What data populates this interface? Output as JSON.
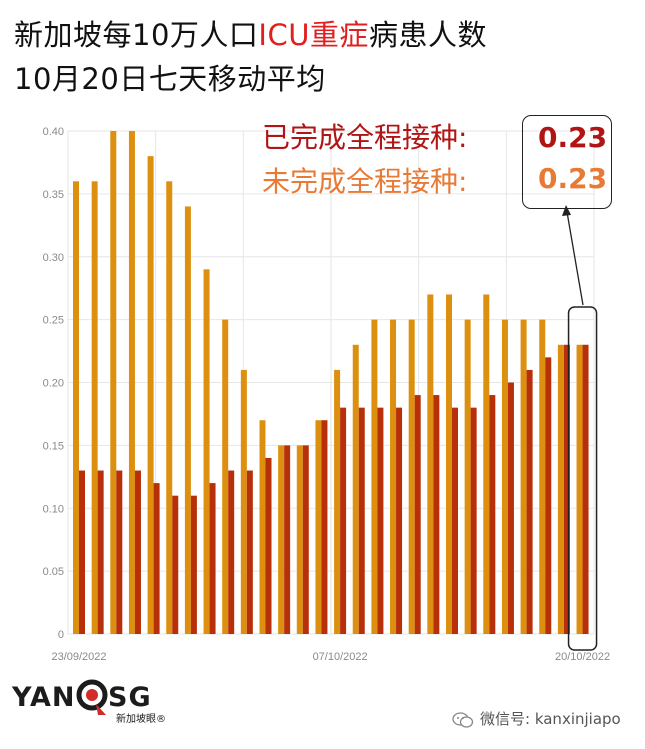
{
  "title": {
    "line1_a": "新加坡每10万人口",
    "line1_b": "ICU重症",
    "line1_c": "病患人数",
    "line2": "10月20日七天移动平均"
  },
  "callout": {
    "vaccinated_label": "已完成全程接种:",
    "vaccinated_value": "0.23",
    "unvaccinated_label": "未完成全程接种:",
    "unvaccinated_value": "0.23"
  },
  "logo": {
    "left": "YAN",
    "right": "SG",
    "sub": "新加坡眼®"
  },
  "wechat": {
    "label": "微信号: kanxinjiapo"
  },
  "colors": {
    "unvaccinated": "#dd900f",
    "vaccinated": "#b7300a",
    "grid": "#e6e6e6",
    "axis_text": "#8a8a8a",
    "title_accent": "#e02020",
    "callout_vaccinated": "#b01414",
    "callout_unvaccinated": "#e87a35"
  },
  "chart_data": {
    "type": "bar",
    "grid": true,
    "ylim": [
      0,
      0.4
    ],
    "yticks": [
      "0",
      "0.05",
      "0.10",
      "0.15",
      "0.20",
      "0.25",
      "0.30",
      "0.35",
      "0.40"
    ],
    "xtick_labels": [
      {
        "index": 0,
        "label": "23/09/2022"
      },
      {
        "index": 14,
        "label": "07/10/2022"
      },
      {
        "index": 27,
        "label": "20/10/2022"
      }
    ],
    "series": [
      {
        "key": "unvaccinated",
        "values": [
          0.36,
          0.36,
          0.4,
          0.4,
          0.38,
          0.36,
          0.34,
          0.29,
          0.25,
          0.21,
          0.17,
          0.15,
          0.15,
          0.17,
          0.21,
          0.23,
          0.25,
          0.25,
          0.25,
          0.27,
          0.27,
          0.25,
          0.27,
          0.25,
          0.25,
          0.25,
          0.23,
          0.23
        ]
      },
      {
        "key": "vaccinated",
        "values": [
          0.13,
          0.13,
          0.13,
          0.13,
          0.12,
          0.11,
          0.11,
          0.12,
          0.13,
          0.13,
          0.14,
          0.15,
          0.15,
          0.17,
          0.18,
          0.18,
          0.18,
          0.18,
          0.19,
          0.19,
          0.18,
          0.18,
          0.19,
          0.2,
          0.21,
          0.22,
          0.23,
          0.23
        ]
      }
    ]
  }
}
